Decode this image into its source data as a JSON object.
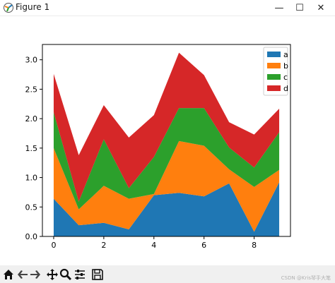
{
  "window": {
    "title": "Figure 1",
    "minimize_glyph": "—",
    "maximize_glyph": "☐",
    "close_glyph": "✕"
  },
  "toolbar": {
    "icons": [
      "home-icon",
      "back-icon",
      "forward-icon",
      "pan-icon",
      "zoom-icon",
      "configure-subplots-icon",
      "save-icon"
    ],
    "watermark": "CSDN @Kris琴手大笔"
  },
  "colors": {
    "a": "#1f77b4",
    "b": "#ff7f0e",
    "c": "#2ca02c",
    "d": "#d62728"
  },
  "chart_data": {
    "type": "area",
    "stacked": true,
    "title": "",
    "xlabel": "",
    "ylabel": "",
    "x": [
      0,
      1,
      2,
      3,
      4,
      5,
      6,
      7,
      8,
      9
    ],
    "xlim": [
      -0.45,
      9.45
    ],
    "ylim": [
      0,
      3.26
    ],
    "xticks": [
      0,
      2,
      4,
      6,
      8
    ],
    "xtick_labels": [
      "0",
      "2",
      "4",
      "6",
      "8"
    ],
    "yticks": [
      0.0,
      0.5,
      1.0,
      1.5,
      2.0,
      2.5,
      3.0
    ],
    "ytick_labels": [
      "0.0",
      "0.5",
      "1.0",
      "1.5",
      "2.0",
      "2.5",
      "3.0"
    ],
    "grid": false,
    "legend_position": "top-right",
    "series": [
      {
        "name": "a",
        "color": "#1f77b4",
        "values": [
          0.64,
          0.19,
          0.23,
          0.12,
          0.7,
          0.74,
          0.68,
          0.9,
          0.08,
          0.92
        ]
      },
      {
        "name": "b",
        "color": "#ff7f0e",
        "values": [
          0.86,
          0.27,
          0.63,
          0.52,
          0.02,
          0.88,
          0.86,
          0.24,
          0.76,
          0.21
        ]
      },
      {
        "name": "c",
        "color": "#2ca02c",
        "values": [
          0.61,
          0.13,
          0.79,
          0.18,
          0.63,
          0.56,
          0.64,
          0.37,
          0.33,
          0.64
        ]
      },
      {
        "name": "d",
        "color": "#d62728",
        "values": [
          0.65,
          0.79,
          0.58,
          0.86,
          0.71,
          0.94,
          0.56,
          0.43,
          0.56,
          0.4
        ]
      }
    ]
  }
}
